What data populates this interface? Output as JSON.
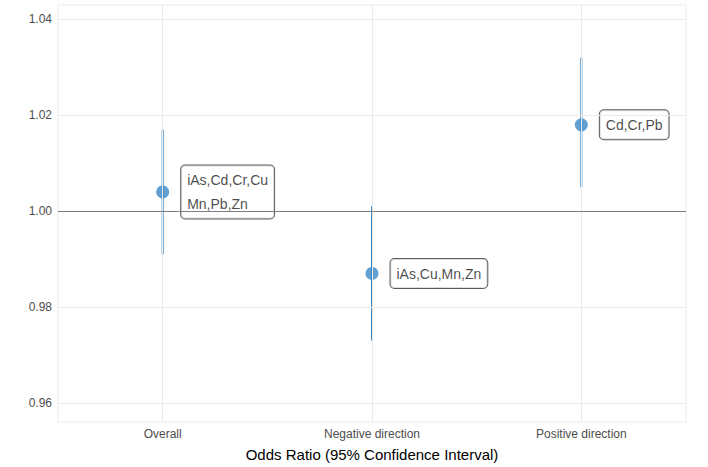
{
  "chart_data": {
    "type": "scatter",
    "categories": [
      "Overall",
      "Negative direction",
      "Positive direction"
    ],
    "values": [
      1.004,
      0.987,
      1.018
    ],
    "ci_lower": [
      0.991,
      0.973,
      1.005
    ],
    "ci_upper": [
      1.017,
      1.001,
      1.032
    ],
    "point_labels": [
      "iAs,Cd,Cr,Cu\nMn,Pb,Zn",
      "iAs,Cu,Mn,Zn",
      "Cd,Cr,Pb"
    ],
    "color": "#3a88c5",
    "xlabel": "Odds Ratio (95% Confidence Interval)",
    "ylim": [
      0.956,
      1.043
    ],
    "yticks": [
      0.96,
      0.98,
      {
        "value": 1,
        "label": "1.00"
      },
      1.02,
      1.04
    ],
    "reference_line": 1,
    "grid": true
  }
}
